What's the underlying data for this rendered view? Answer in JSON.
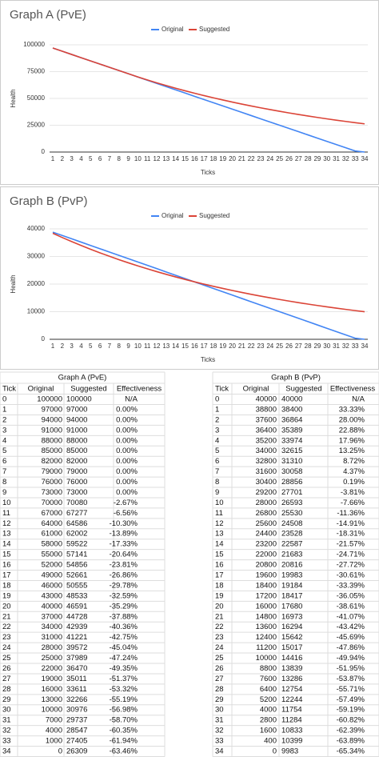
{
  "chart_data": [
    {
      "type": "line",
      "title": "Graph A (PvE)",
      "x_label": "Ticks",
      "y_label": "Health",
      "categories": [
        "1",
        "2",
        "3",
        "4",
        "5",
        "6",
        "7",
        "8",
        "9",
        "10",
        "11",
        "12",
        "13",
        "14",
        "15",
        "16",
        "17",
        "18",
        "19",
        "20",
        "21",
        "22",
        "23",
        "24",
        "25",
        "26",
        "27",
        "28",
        "29",
        "30",
        "31",
        "32",
        "33",
        "34"
      ],
      "series": [
        {
          "name": "Original",
          "color": "#4285f4",
          "values": [
            97000,
            94000,
            91000,
            88000,
            85000,
            82000,
            79000,
            76000,
            73000,
            70000,
            67000,
            64000,
            61000,
            58000,
            55000,
            52000,
            49000,
            46000,
            43000,
            40000,
            37000,
            34000,
            31000,
            28000,
            25000,
            22000,
            19000,
            16000,
            13000,
            10000,
            7000,
            4000,
            1000,
            0
          ]
        },
        {
          "name": "Suggested",
          "color": "#db4437",
          "values": [
            97000,
            94000,
            91000,
            88000,
            85000,
            82000,
            79000,
            76000,
            73000,
            70080,
            67277,
            64586,
            62002,
            59522,
            57141,
            54856,
            52661,
            50555,
            48533,
            46591,
            44728,
            42939,
            41221,
            39572,
            37989,
            36470,
            35011,
            33611,
            32266,
            30976,
            29737,
            28547,
            27405,
            26309
          ]
        }
      ],
      "ylim": [
        0,
        100000
      ],
      "yticks": [
        0,
        25000,
        50000,
        75000,
        100000
      ],
      "grid": true,
      "legend": "top"
    },
    {
      "type": "line",
      "title": "Graph B (PvP)",
      "x_label": "Ticks",
      "y_label": "Health",
      "categories": [
        "1",
        "2",
        "3",
        "4",
        "5",
        "6",
        "7",
        "8",
        "9",
        "10",
        "11",
        "12",
        "13",
        "14",
        "15",
        "16",
        "17",
        "18",
        "19",
        "20",
        "21",
        "22",
        "23",
        "24",
        "25",
        "26",
        "27",
        "28",
        "29",
        "30",
        "31",
        "32",
        "33",
        "34"
      ],
      "series": [
        {
          "name": "Original",
          "color": "#4285f4",
          "values": [
            38800,
            37600,
            36400,
            35200,
            34000,
            32800,
            31600,
            30400,
            29200,
            28000,
            26800,
            25600,
            24400,
            23200,
            22000,
            20800,
            19600,
            18400,
            17200,
            16000,
            14800,
            13600,
            12400,
            11200,
            10000,
            8800,
            7600,
            6400,
            5200,
            4000,
            2800,
            1600,
            400,
            0
          ]
        },
        {
          "name": "Suggested",
          "color": "#db4437",
          "values": [
            38400,
            36864,
            35389,
            33974,
            32615,
            31310,
            30058,
            28856,
            27701,
            26593,
            25530,
            24508,
            23528,
            22587,
            21683,
            20816,
            19983,
            19184,
            18417,
            17680,
            16973,
            16294,
            15642,
            15017,
            14416,
            13839,
            13286,
            12754,
            12244,
            11754,
            11284,
            10833,
            10399,
            9983
          ]
        }
      ],
      "ylim": [
        0,
        40000
      ],
      "yticks": [
        0,
        10000,
        20000,
        30000,
        40000
      ],
      "grid": true,
      "legend": "top"
    }
  ],
  "tables": [
    {
      "title": "Graph A (PvE)",
      "columns": [
        "Tick",
        "Original",
        "Suggested",
        "Effectiveness"
      ],
      "rows": [
        [
          0,
          100000,
          100000,
          "N/A"
        ],
        [
          1,
          97000,
          97000,
          "0.00%"
        ],
        [
          2,
          94000,
          94000,
          "0.00%"
        ],
        [
          3,
          91000,
          91000,
          "0.00%"
        ],
        [
          4,
          88000,
          88000,
          "0.00%"
        ],
        [
          5,
          85000,
          85000,
          "0.00%"
        ],
        [
          6,
          82000,
          82000,
          "0.00%"
        ],
        [
          7,
          79000,
          79000,
          "0.00%"
        ],
        [
          8,
          76000,
          76000,
          "0.00%"
        ],
        [
          9,
          73000,
          73000,
          "0.00%"
        ],
        [
          10,
          70000,
          70080,
          "-2.67%"
        ],
        [
          11,
          67000,
          67277,
          "-6.56%"
        ],
        [
          12,
          64000,
          64586,
          "-10.30%"
        ],
        [
          13,
          61000,
          62002,
          "-13.89%"
        ],
        [
          14,
          58000,
          59522,
          "-17.33%"
        ],
        [
          15,
          55000,
          57141,
          "-20.64%"
        ],
        [
          16,
          52000,
          54856,
          "-23.81%"
        ],
        [
          17,
          49000,
          52661,
          "-26.86%"
        ],
        [
          18,
          46000,
          50555,
          "-29.78%"
        ],
        [
          19,
          43000,
          48533,
          "-32.59%"
        ],
        [
          20,
          40000,
          46591,
          "-35.29%"
        ],
        [
          21,
          37000,
          44728,
          "-37.88%"
        ],
        [
          22,
          34000,
          42939,
          "-40.36%"
        ],
        [
          23,
          31000,
          41221,
          "-42.75%"
        ],
        [
          24,
          28000,
          39572,
          "-45.04%"
        ],
        [
          25,
          25000,
          37989,
          "-47.24%"
        ],
        [
          26,
          22000,
          36470,
          "-49.35%"
        ],
        [
          27,
          19000,
          35011,
          "-51.37%"
        ],
        [
          28,
          16000,
          33611,
          "-53.32%"
        ],
        [
          29,
          13000,
          32266,
          "-55.19%"
        ],
        [
          30,
          10000,
          30976,
          "-56.98%"
        ],
        [
          31,
          7000,
          29737,
          "-58.70%"
        ],
        [
          32,
          4000,
          28547,
          "-60.35%"
        ],
        [
          33,
          1000,
          27405,
          "-61.94%"
        ],
        [
          34,
          0,
          26309,
          "-63.46%"
        ]
      ]
    },
    {
      "title": "Graph B (PvP)",
      "columns": [
        "Tick",
        "Original",
        "Suggested",
        "Effectiveness"
      ],
      "rows": [
        [
          0,
          40000,
          40000,
          "N/A"
        ],
        [
          1,
          38800,
          38400,
          "33.33%"
        ],
        [
          2,
          37600,
          36864,
          "28.00%"
        ],
        [
          3,
          36400,
          35389,
          "22.88%"
        ],
        [
          4,
          35200,
          33974,
          "17.96%"
        ],
        [
          5,
          34000,
          32615,
          "13.25%"
        ],
        [
          6,
          32800,
          31310,
          "8.72%"
        ],
        [
          7,
          31600,
          30058,
          "4.37%"
        ],
        [
          8,
          30400,
          28856,
          "0.19%"
        ],
        [
          9,
          29200,
          27701,
          "-3.81%"
        ],
        [
          10,
          28000,
          26593,
          "-7.66%"
        ],
        [
          11,
          26800,
          25530,
          "-11.36%"
        ],
        [
          12,
          25600,
          24508,
          "-14.91%"
        ],
        [
          13,
          24400,
          23528,
          "-18.31%"
        ],
        [
          14,
          23200,
          22587,
          "-21.57%"
        ],
        [
          15,
          22000,
          21683,
          "-24.71%"
        ],
        [
          16,
          20800,
          20816,
          "-27.72%"
        ],
        [
          17,
          19600,
          19983,
          "-30.61%"
        ],
        [
          18,
          18400,
          19184,
          "-33.39%"
        ],
        [
          19,
          17200,
          18417,
          "-36.05%"
        ],
        [
          20,
          16000,
          17680,
          "-38.61%"
        ],
        [
          21,
          14800,
          16973,
          "-41.07%"
        ],
        [
          22,
          13600,
          16294,
          "-43.42%"
        ],
        [
          23,
          12400,
          15642,
          "-45.69%"
        ],
        [
          24,
          11200,
          15017,
          "-47.86%"
        ],
        [
          25,
          10000,
          14416,
          "-49.94%"
        ],
        [
          26,
          8800,
          13839,
          "-51.95%"
        ],
        [
          27,
          7600,
          13286,
          "-53.87%"
        ],
        [
          28,
          6400,
          12754,
          "-55.71%"
        ],
        [
          29,
          5200,
          12244,
          "-57.49%"
        ],
        [
          30,
          4000,
          11754,
          "-59.19%"
        ],
        [
          31,
          2800,
          11284,
          "-60.82%"
        ],
        [
          32,
          1600,
          10833,
          "-62.39%"
        ],
        [
          33,
          400,
          10399,
          "-63.89%"
        ],
        [
          34,
          0,
          9983,
          "-65.34%"
        ]
      ]
    }
  ]
}
